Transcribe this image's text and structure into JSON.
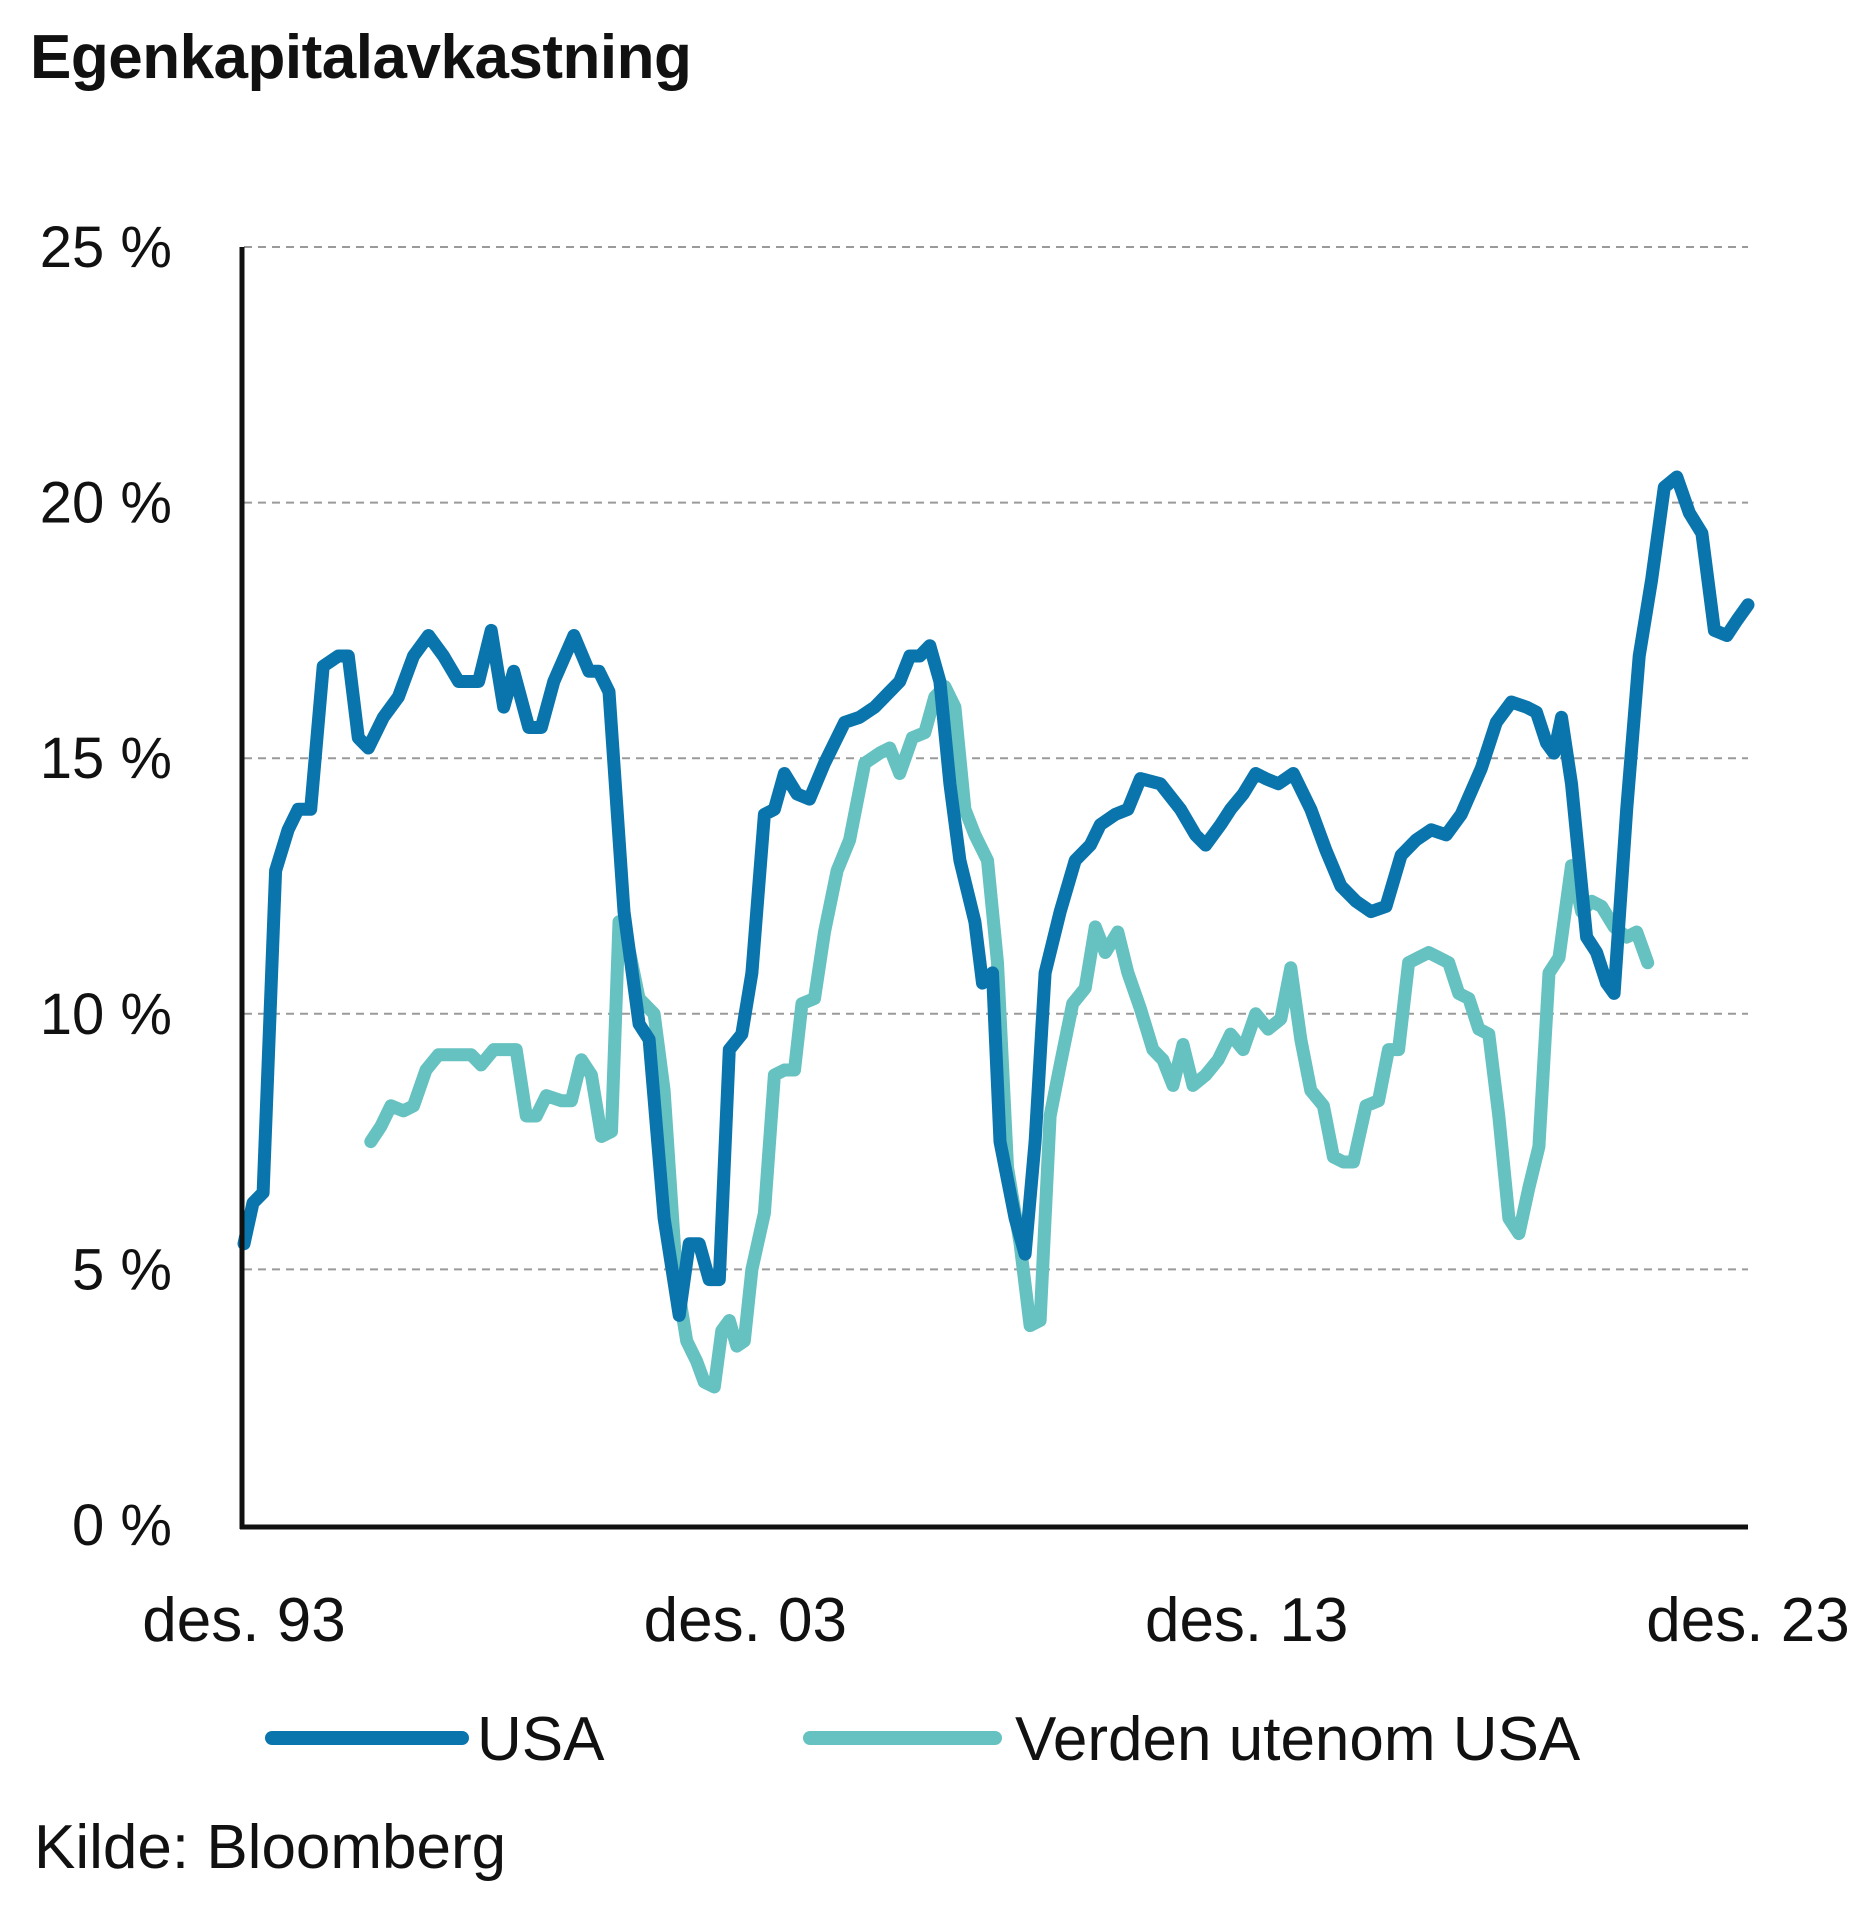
{
  "chart_data": {
    "type": "line",
    "title": "Egenkapitalavkastning",
    "xlabel": "",
    "ylabel": "",
    "ylim": [
      0,
      25
    ],
    "xlim": [
      1993.92,
      2023.92
    ],
    "y_ticks": [
      0,
      5,
      10,
      15,
      20,
      25
    ],
    "y_tick_labels": [
      "0 %",
      "5 %",
      "10 %",
      "15 %",
      "20 %",
      "25 %"
    ],
    "x_tick_values": [
      1993.92,
      2003.92,
      2013.92,
      2023.92
    ],
    "x_tick_labels": [
      "des. 93",
      "des. 03",
      "des. 13",
      "des. 23"
    ],
    "grid": "horizontal dashed",
    "legend_position": "bottom",
    "series": [
      {
        "name": "USA",
        "color": "#0a75ad",
        "points": [
          [
            1993.92,
            5.5
          ],
          [
            1994.1,
            6.3
          ],
          [
            1994.3,
            6.5
          ],
          [
            1994.55,
            12.8
          ],
          [
            1994.8,
            13.6
          ],
          [
            1995.0,
            14.0
          ],
          [
            1995.25,
            14.0
          ],
          [
            1995.5,
            16.8
          ],
          [
            1995.8,
            17.0
          ],
          [
            1996.0,
            17.0
          ],
          [
            1996.2,
            15.4
          ],
          [
            1996.4,
            15.2
          ],
          [
            1996.7,
            15.8
          ],
          [
            1997.0,
            16.2
          ],
          [
            1997.3,
            17.0
          ],
          [
            1997.6,
            17.4
          ],
          [
            1997.9,
            17.0
          ],
          [
            1998.2,
            16.5
          ],
          [
            1998.6,
            16.5
          ],
          [
            1998.85,
            17.5
          ],
          [
            1999.1,
            16.0
          ],
          [
            1999.3,
            16.7
          ],
          [
            1999.6,
            15.6
          ],
          [
            1999.85,
            15.6
          ],
          [
            2000.1,
            16.5
          ],
          [
            2000.5,
            17.4
          ],
          [
            2000.8,
            16.7
          ],
          [
            2001.0,
            16.7
          ],
          [
            2001.2,
            16.3
          ],
          [
            2001.5,
            12.0
          ],
          [
            2001.8,
            9.8
          ],
          [
            2002.0,
            9.5
          ],
          [
            2002.3,
            6.0
          ],
          [
            2002.6,
            4.1
          ],
          [
            2002.8,
            5.5
          ],
          [
            2003.0,
            5.5
          ],
          [
            2003.2,
            4.8
          ],
          [
            2003.4,
            4.8
          ],
          [
            2003.6,
            9.3
          ],
          [
            2003.85,
            9.6
          ],
          [
            2004.05,
            10.8
          ],
          [
            2004.3,
            13.9
          ],
          [
            2004.5,
            14.0
          ],
          [
            2004.7,
            14.7
          ],
          [
            2004.95,
            14.3
          ],
          [
            2005.2,
            14.2
          ],
          [
            2005.5,
            14.9
          ],
          [
            2005.9,
            15.7
          ],
          [
            2006.2,
            15.8
          ],
          [
            2006.5,
            16.0
          ],
          [
            2006.8,
            16.3
          ],
          [
            2007.0,
            16.5
          ],
          [
            2007.2,
            17.0
          ],
          [
            2007.4,
            17.0
          ],
          [
            2007.6,
            17.2
          ],
          [
            2007.8,
            16.5
          ],
          [
            2008.0,
            14.5
          ],
          [
            2008.2,
            13.0
          ],
          [
            2008.5,
            11.8
          ],
          [
            2008.65,
            10.6
          ],
          [
            2008.85,
            10.8
          ],
          [
            2009.0,
            7.5
          ],
          [
            2009.3,
            6.0
          ],
          [
            2009.5,
            5.3
          ],
          [
            2009.7,
            7.5
          ],
          [
            2009.9,
            10.8
          ],
          [
            2010.2,
            12.0
          ],
          [
            2010.5,
            13.0
          ],
          [
            2010.8,
            13.3
          ],
          [
            2011.0,
            13.7
          ],
          [
            2011.3,
            13.9
          ],
          [
            2011.55,
            14.0
          ],
          [
            2011.8,
            14.6
          ],
          [
            2012.2,
            14.5
          ],
          [
            2012.6,
            14.0
          ],
          [
            2012.9,
            13.5
          ],
          [
            2013.1,
            13.3
          ],
          [
            2013.4,
            13.7
          ],
          [
            2013.6,
            14.0
          ],
          [
            2013.85,
            14.3
          ],
          [
            2014.1,
            14.7
          ],
          [
            2014.3,
            14.6
          ],
          [
            2014.55,
            14.5
          ],
          [
            2014.85,
            14.7
          ],
          [
            2015.2,
            14.0
          ],
          [
            2015.5,
            13.2
          ],
          [
            2015.8,
            12.5
          ],
          [
            2016.1,
            12.2
          ],
          [
            2016.4,
            12.0
          ],
          [
            2016.7,
            12.1
          ],
          [
            2017.0,
            13.1
          ],
          [
            2017.3,
            13.4
          ],
          [
            2017.6,
            13.6
          ],
          [
            2017.9,
            13.5
          ],
          [
            2018.2,
            13.9
          ],
          [
            2018.6,
            14.8
          ],
          [
            2018.9,
            15.7
          ],
          [
            2019.2,
            16.1
          ],
          [
            2019.5,
            16.0
          ],
          [
            2019.7,
            15.9
          ],
          [
            2019.9,
            15.3
          ],
          [
            2020.05,
            15.1
          ],
          [
            2020.2,
            15.8
          ],
          [
            2020.4,
            14.5
          ],
          [
            2020.7,
            11.5
          ],
          [
            2020.9,
            11.2
          ],
          [
            2021.1,
            10.6
          ],
          [
            2021.25,
            10.4
          ],
          [
            2021.5,
            14.0
          ],
          [
            2021.75,
            17.0
          ],
          [
            2022.0,
            18.5
          ],
          [
            2022.25,
            20.3
          ],
          [
            2022.5,
            20.5
          ],
          [
            2022.75,
            19.8
          ],
          [
            2023.0,
            19.4
          ],
          [
            2023.25,
            17.5
          ],
          [
            2023.5,
            17.4
          ],
          [
            2023.7,
            17.7
          ],
          [
            2023.92,
            18.0
          ]
        ]
      },
      {
        "name": "Verden utenom USA",
        "color": "#66c1c1",
        "points": [
          [
            1996.45,
            7.5
          ],
          [
            1996.65,
            7.8
          ],
          [
            1996.85,
            8.2
          ],
          [
            1997.1,
            8.1
          ],
          [
            1997.3,
            8.2
          ],
          [
            1997.55,
            8.9
          ],
          [
            1997.8,
            9.2
          ],
          [
            1998.0,
            9.2
          ],
          [
            1998.25,
            9.2
          ],
          [
            1998.45,
            9.2
          ],
          [
            1998.65,
            9.0
          ],
          [
            1998.9,
            9.3
          ],
          [
            1999.15,
            9.3
          ],
          [
            1999.35,
            9.3
          ],
          [
            1999.55,
            8.0
          ],
          [
            1999.75,
            8.0
          ],
          [
            1999.95,
            8.4
          ],
          [
            2000.25,
            8.3
          ],
          [
            2000.45,
            8.3
          ],
          [
            2000.65,
            9.1
          ],
          [
            2000.85,
            8.8
          ],
          [
            2001.05,
            7.6
          ],
          [
            2001.25,
            7.7
          ],
          [
            2001.4,
            11.8
          ],
          [
            2001.55,
            11.5
          ],
          [
            2001.8,
            10.3
          ],
          [
            2002.1,
            10.0
          ],
          [
            2002.3,
            8.5
          ],
          [
            2002.55,
            4.8
          ],
          [
            2002.75,
            3.6
          ],
          [
            2002.95,
            3.2
          ],
          [
            2003.1,
            2.8
          ],
          [
            2003.3,
            2.7
          ],
          [
            2003.45,
            3.8
          ],
          [
            2003.6,
            4.0
          ],
          [
            2003.75,
            3.5
          ],
          [
            2003.9,
            3.6
          ],
          [
            2004.05,
            5.0
          ],
          [
            2004.3,
            6.1
          ],
          [
            2004.5,
            8.8
          ],
          [
            2004.7,
            8.9
          ],
          [
            2004.9,
            8.9
          ],
          [
            2005.05,
            10.2
          ],
          [
            2005.3,
            10.3
          ],
          [
            2005.5,
            11.6
          ],
          [
            2005.75,
            12.8
          ],
          [
            2006.0,
            13.4
          ],
          [
            2006.3,
            14.9
          ],
          [
            2006.6,
            15.1
          ],
          [
            2006.8,
            15.2
          ],
          [
            2007.0,
            14.7
          ],
          [
            2007.25,
            15.4
          ],
          [
            2007.5,
            15.5
          ],
          [
            2007.7,
            16.2
          ],
          [
            2007.9,
            16.4
          ],
          [
            2008.1,
            16.0
          ],
          [
            2008.3,
            14.0
          ],
          [
            2008.5,
            13.5
          ],
          [
            2008.75,
            13.0
          ],
          [
            2008.95,
            11.0
          ],
          [
            2009.15,
            7.0
          ],
          [
            2009.4,
            5.5
          ],
          [
            2009.6,
            3.9
          ],
          [
            2009.8,
            4.0
          ],
          [
            2010.0,
            8.0
          ],
          [
            2010.2,
            9.0
          ],
          [
            2010.45,
            10.2
          ],
          [
            2010.7,
            10.5
          ],
          [
            2010.9,
            11.7
          ],
          [
            2011.1,
            11.2
          ],
          [
            2011.35,
            11.6
          ],
          [
            2011.55,
            10.8
          ],
          [
            2011.8,
            10.1
          ],
          [
            2012.05,
            9.3
          ],
          [
            2012.25,
            9.1
          ],
          [
            2012.45,
            8.6
          ],
          [
            2012.65,
            9.4
          ],
          [
            2012.85,
            8.6
          ],
          [
            2013.1,
            8.8
          ],
          [
            2013.35,
            9.1
          ],
          [
            2013.6,
            9.6
          ],
          [
            2013.85,
            9.3
          ],
          [
            2014.1,
            10.0
          ],
          [
            2014.35,
            9.7
          ],
          [
            2014.6,
            9.9
          ],
          [
            2014.8,
            10.9
          ],
          [
            2015.0,
            9.5
          ],
          [
            2015.2,
            8.5
          ],
          [
            2015.45,
            8.2
          ],
          [
            2015.65,
            7.2
          ],
          [
            2015.85,
            7.1
          ],
          [
            2016.05,
            7.1
          ],
          [
            2016.3,
            8.2
          ],
          [
            2016.55,
            8.3
          ],
          [
            2016.75,
            9.3
          ],
          [
            2016.95,
            9.3
          ],
          [
            2017.15,
            11.0
          ],
          [
            2017.35,
            11.1
          ],
          [
            2017.55,
            11.2
          ],
          [
            2017.75,
            11.1
          ],
          [
            2017.95,
            11.0
          ],
          [
            2018.15,
            10.4
          ],
          [
            2018.35,
            10.3
          ],
          [
            2018.55,
            9.7
          ],
          [
            2018.75,
            9.6
          ],
          [
            2018.95,
            8.0
          ],
          [
            2019.15,
            6.0
          ],
          [
            2019.35,
            5.7
          ],
          [
            2019.55,
            6.6
          ],
          [
            2019.75,
            7.4
          ],
          [
            2019.95,
            10.8
          ],
          [
            2020.15,
            11.1
          ],
          [
            2020.4,
            12.9
          ],
          [
            2020.6,
            12.0
          ],
          [
            2020.8,
            12.2
          ],
          [
            2021.0,
            12.1
          ],
          [
            2021.25,
            11.7
          ],
          [
            2021.5,
            11.5
          ],
          [
            2021.7,
            11.6
          ],
          [
            2021.92,
            11.0
          ]
        ]
      }
    ],
    "source": "Kilde: Bloomberg"
  }
}
